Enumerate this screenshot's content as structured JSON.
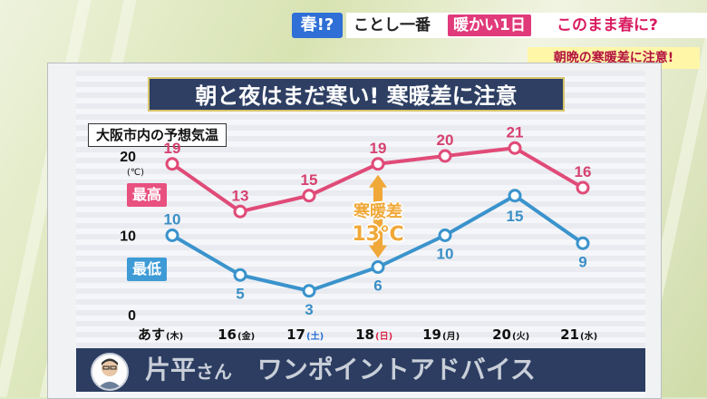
{
  "banner": {
    "tag": "春!?",
    "headline_part1": "ことし一番",
    "headline_highlight": "暖かい1日",
    "headline_part2": "このまま春に?",
    "subheadline": "朝晩の寒暖差に注意!"
  },
  "board": {
    "title": "朝と夜はまだ寒い! 寒暖差に注意",
    "chart_title": "大阪市内の予想気温"
  },
  "chart_data": {
    "type": "line",
    "title": "大阪市内の予想気温",
    "unit": "(℃)",
    "y_ticks": [
      "20",
      "10",
      "0"
    ],
    "ylim": [
      0,
      20
    ],
    "categories": [
      {
        "label": "あす",
        "day": "(木)",
        "day_type": "weekday"
      },
      {
        "label": "16",
        "day": "(金)",
        "day_type": "weekday"
      },
      {
        "label": "17",
        "day": "(土)",
        "day_type": "sat"
      },
      {
        "label": "18",
        "day": "(日)",
        "day_type": "sun"
      },
      {
        "label": "19",
        "day": "(月)",
        "day_type": "weekday"
      },
      {
        "label": "20",
        "day": "(火)",
        "day_type": "weekday"
      },
      {
        "label": "21",
        "day": "(水)",
        "day_type": "weekday"
      }
    ],
    "series": [
      {
        "name": "最高",
        "values": [
          19,
          13,
          15,
          19,
          20,
          21,
          16
        ],
        "color": "#e04b78"
      },
      {
        "name": "最低",
        "values": [
          10,
          5,
          3,
          6,
          10,
          15,
          9
        ],
        "color": "#3a93cc"
      }
    ],
    "annotation": {
      "label": "寒暖差",
      "value": "13℃",
      "color": "#f0a838"
    },
    "grid": false
  },
  "footer": {
    "name": "片平",
    "honorific": "さん",
    "text": "ワンポイントアドバイス"
  }
}
